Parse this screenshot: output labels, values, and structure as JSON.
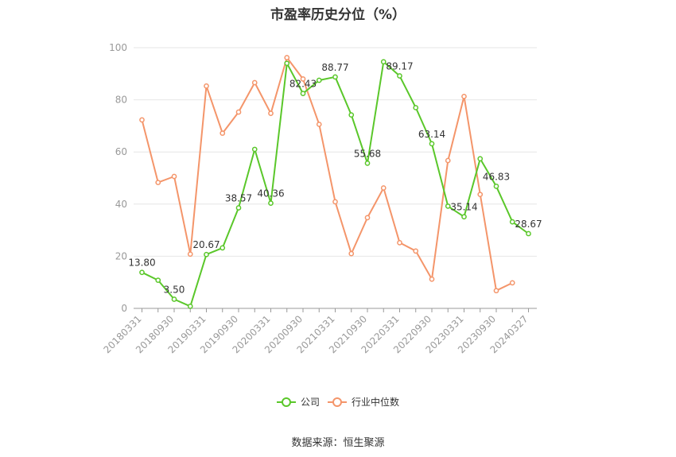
{
  "chart_data": {
    "type": "line",
    "title": "市盈率历史分位（%）",
    "source": "数据来源：恒生聚源",
    "ylim": [
      0,
      100
    ],
    "yticks": [
      0,
      20,
      40,
      60,
      80,
      100
    ],
    "grid": true,
    "legend_position": "bottom",
    "categories": [
      "20180331",
      "20180630",
      "20180930",
      "20181231",
      "20190331",
      "20190630",
      "20190930",
      "20191231",
      "20200331",
      "20200630",
      "20200930",
      "20201231",
      "20210331",
      "20210630",
      "20210930",
      "20211231",
      "20220331",
      "20220630",
      "20220930",
      "20221231",
      "20230331",
      "20230630",
      "20230930",
      "20231231",
      "20240327"
    ],
    "xtick_labels": [
      "20180331",
      "20180930",
      "20190331",
      "20190930",
      "20200331",
      "20200930",
      "20210331",
      "20210930",
      "20220331",
      "20220930",
      "20230331",
      "20230930",
      "20240327"
    ],
    "series": [
      {
        "name": "公司",
        "color": "#5ac72a",
        "values": [
          13.8,
          10.8,
          3.5,
          0.8,
          20.67,
          23.2,
          38.57,
          61.0,
          40.36,
          94.0,
          82.43,
          87.5,
          88.77,
          74.2,
          55.68,
          94.6,
          89.17,
          77.0,
          63.14,
          39.2,
          35.14,
          57.4,
          46.83,
          33.2,
          28.67
        ],
        "labels": [
          "13.80",
          "",
          "3.50",
          "",
          "20.67",
          "",
          "38.57",
          "",
          "40.36",
          "",
          "82.43",
          "",
          "88.77",
          "",
          "55.68",
          "",
          "89.17",
          "",
          "63.14",
          "",
          "35.14",
          "",
          "46.83",
          "",
          "28.67"
        ]
      },
      {
        "name": "行业中位数",
        "color": "#f4956a",
        "values": [
          72.3,
          48.3,
          50.6,
          20.8,
          85.3,
          67.2,
          75.3,
          86.6,
          74.8,
          96.2,
          88.0,
          70.6,
          40.9,
          21.0,
          34.8,
          46.2,
          25.2,
          22.0,
          11.2,
          56.7,
          81.3,
          43.7,
          6.8,
          9.8,
          null
        ],
        "labels": []
      }
    ]
  }
}
